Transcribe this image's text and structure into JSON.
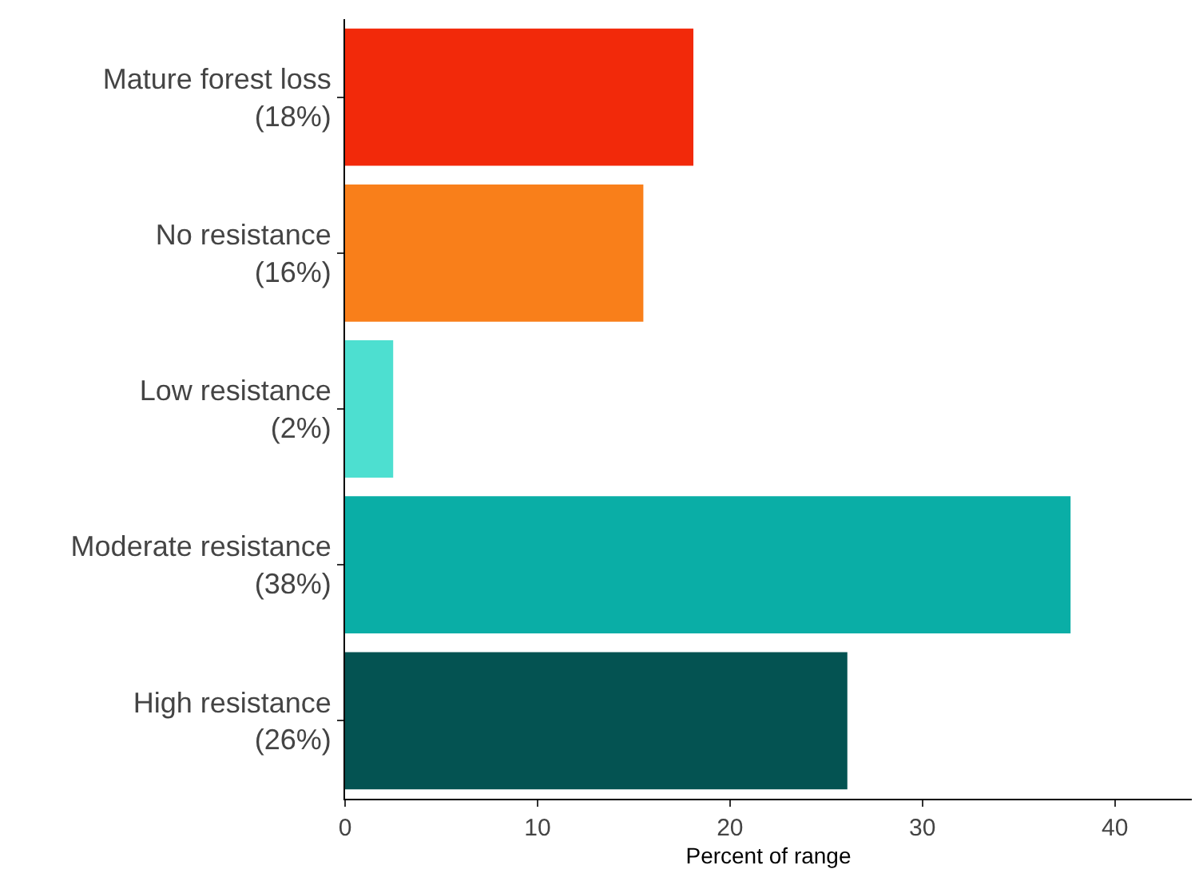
{
  "chart_data": {
    "type": "bar",
    "orientation": "horizontal",
    "xlabel": "Percent of range",
    "categories": [
      "Mature forest loss\n(18%)",
      "No resistance\n(16%)",
      "Low resistance\n(2%)",
      "Moderate resistance\n(38%)",
      "High resistance\n(26%)"
    ],
    "values": [
      18.1,
      15.5,
      2.5,
      37.7,
      26.1
    ],
    "colors": [
      "#f2290a",
      "#f97f1a",
      "#4ddfd0",
      "#0aaea6",
      "#045352"
    ],
    "xlim": [
      0,
      44
    ],
    "xticks": [
      0,
      10,
      20,
      30,
      40
    ],
    "grid": false
  }
}
